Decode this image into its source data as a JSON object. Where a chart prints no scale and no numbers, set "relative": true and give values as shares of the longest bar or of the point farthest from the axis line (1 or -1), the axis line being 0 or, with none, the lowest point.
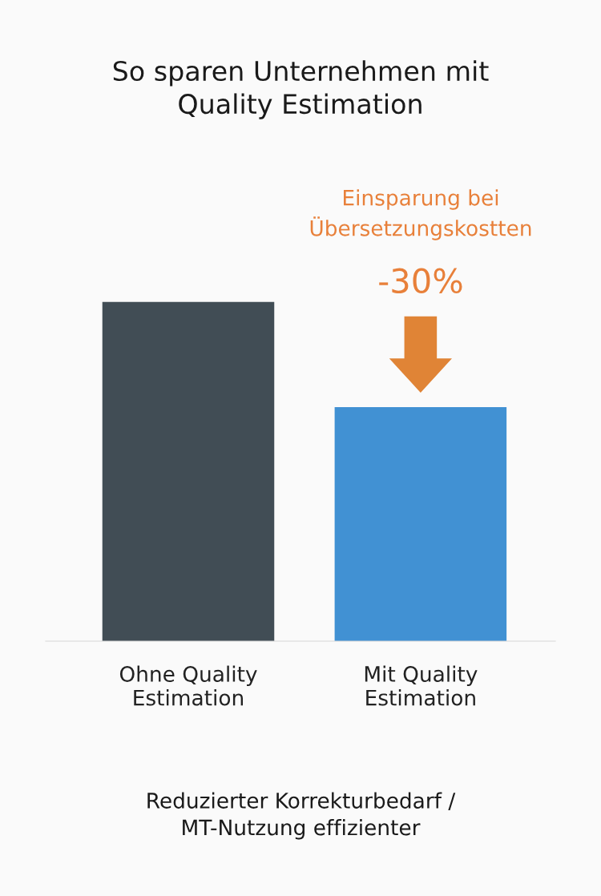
{
  "chart_data": {
    "type": "bar",
    "title": "So sparen Unternehmen mit\nQuality Estimation",
    "categories": [
      "Ohne Quality\nEstimation",
      "Mit Quality\nEstimation"
    ],
    "values": [
      1,
      0.69
    ],
    "colors": [
      "#414d55",
      "#4191d3"
    ],
    "relative": true,
    "grid": false,
    "legend": false,
    "annotations": [
      "Einsparung bei\nÜbersetzungskostten",
      "-30%",
      "Reduzierter Korrekturbedarf /\nMT-Nutzung effizienter"
    ]
  }
}
